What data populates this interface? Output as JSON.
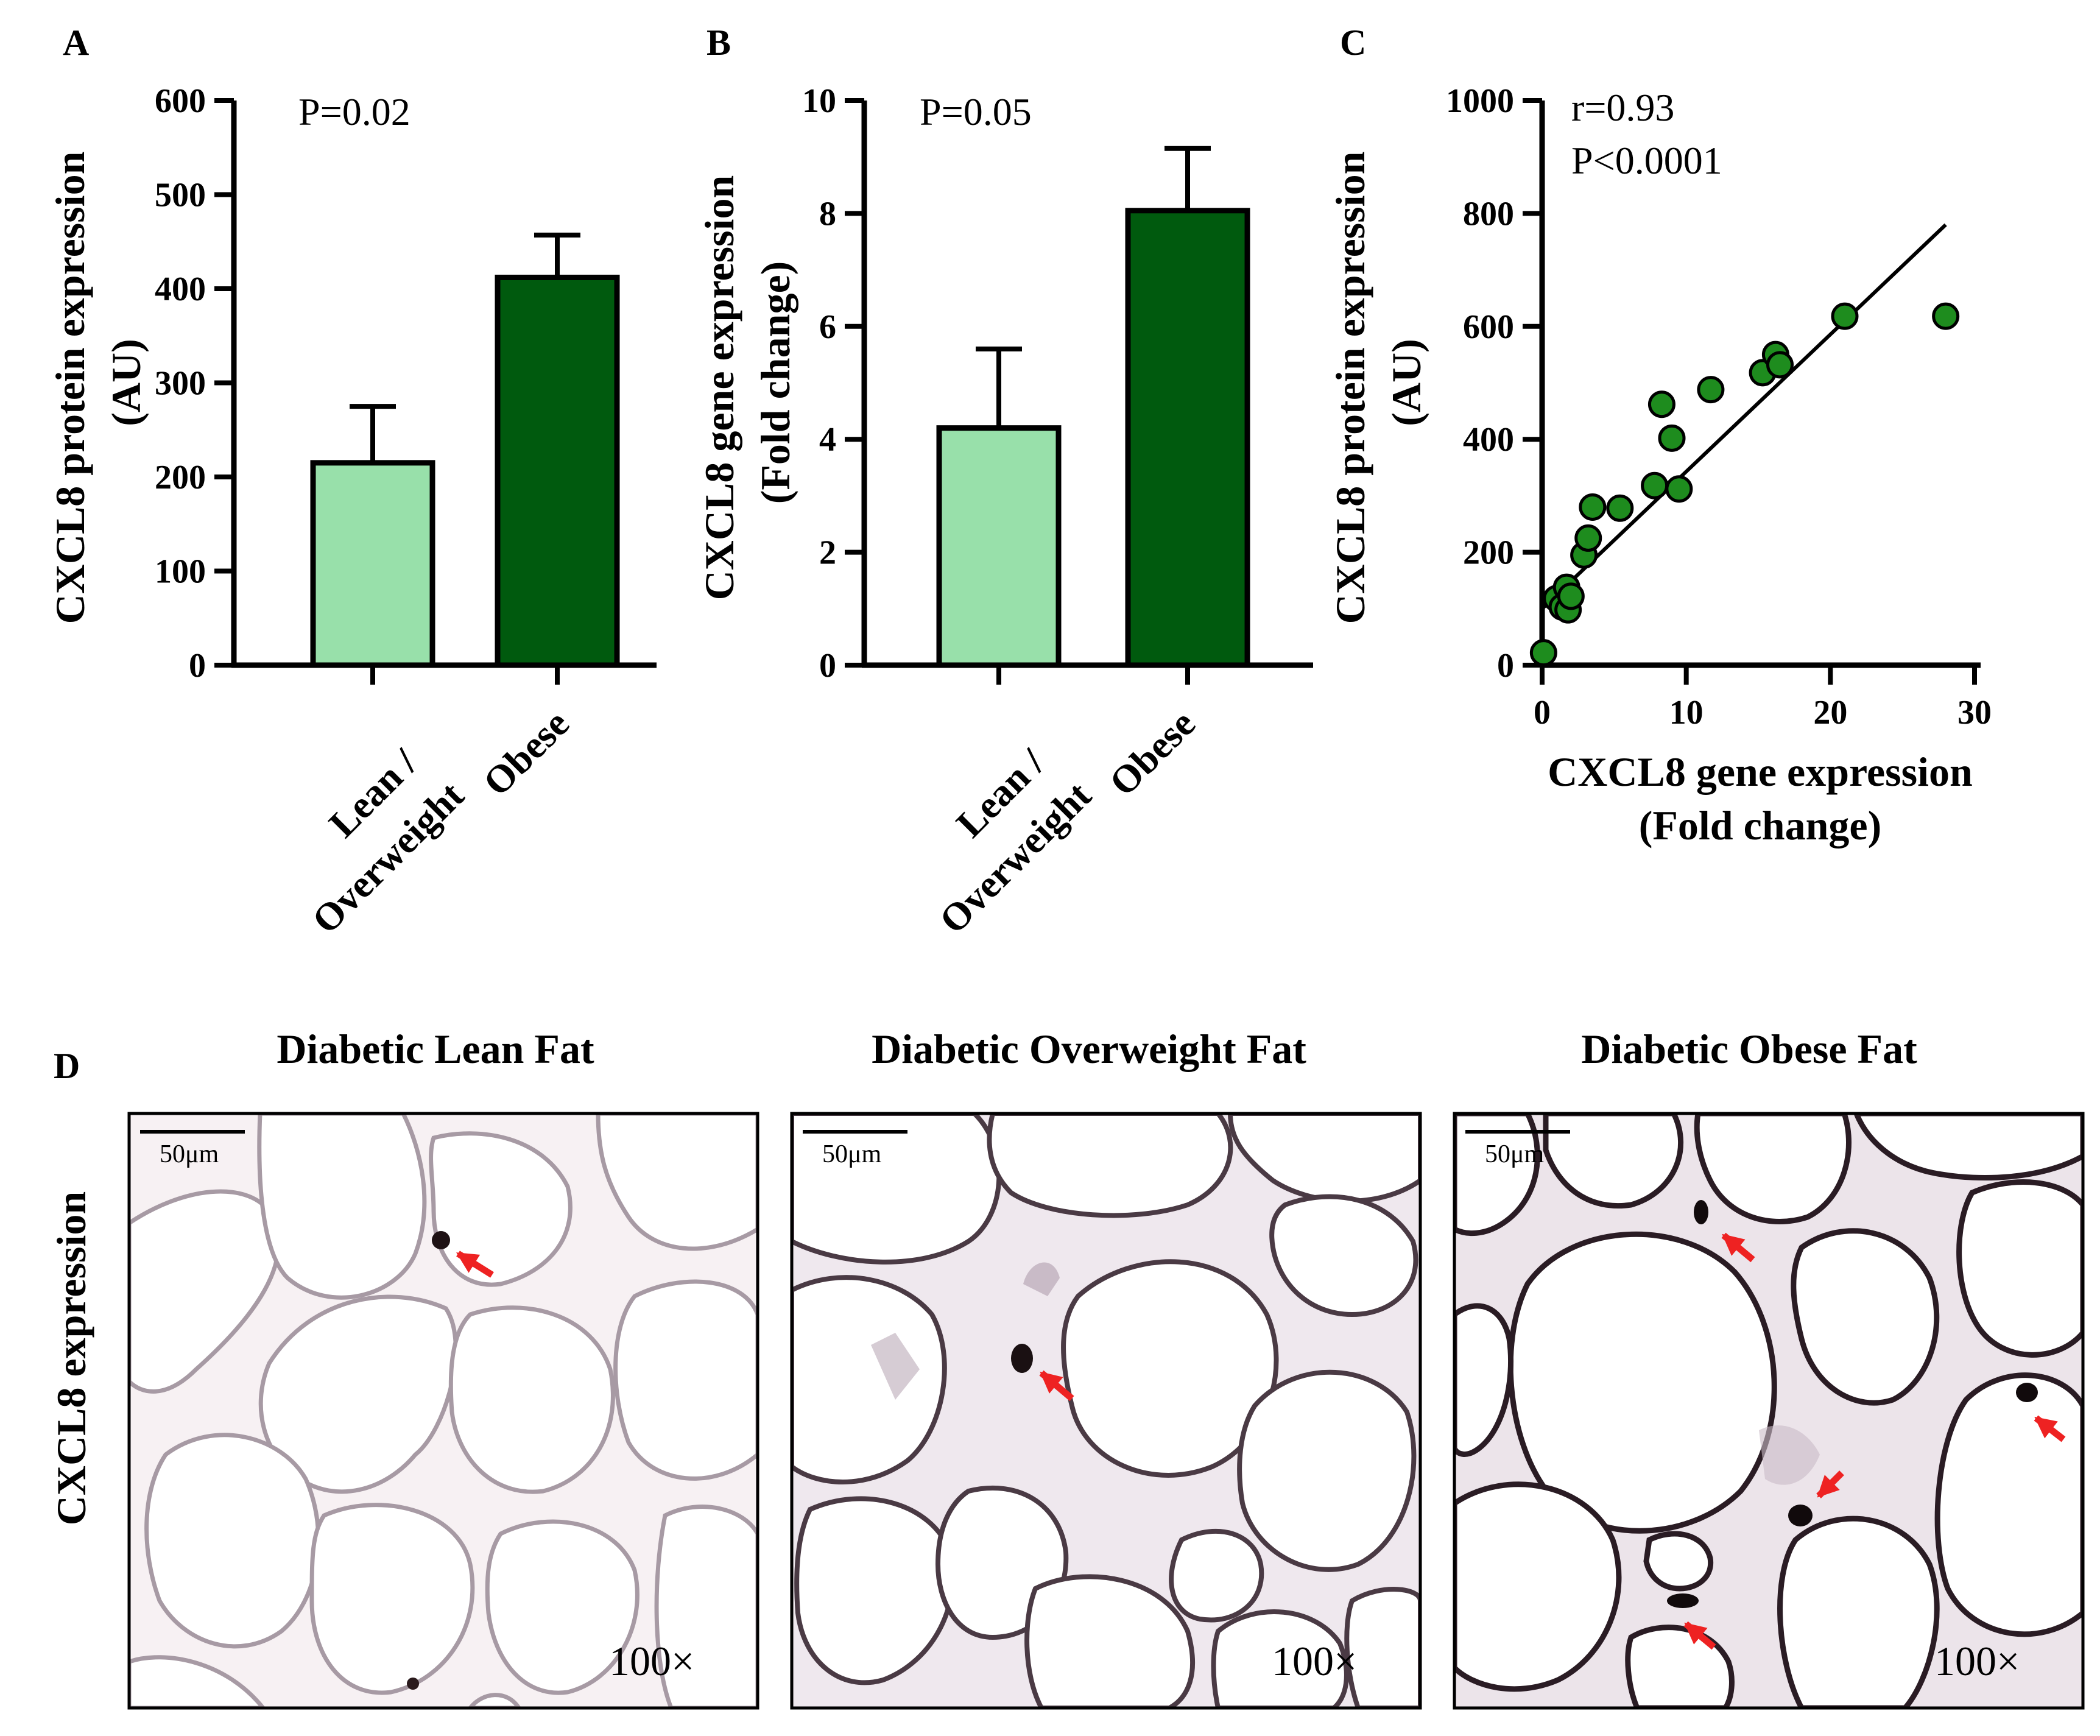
{
  "panel_labels": [
    "A",
    "B",
    "C",
    "D"
  ],
  "colors": {
    "lean_bar": "#98e0aa",
    "obese_bar": "#005a0e",
    "scatter_point": "#1e8c1e",
    "arrow": "#ee2222",
    "tissue_bg": "#f7f1f3",
    "membrane": "#a79aa4"
  },
  "chart_data": [
    {
      "type": "bar",
      "panel": "A",
      "categories": [
        "Lean /",
        "Obese"
      ],
      "category_lines": [
        [
          "Lean /",
          "Overweight"
        ],
        [
          "Obese"
        ]
      ],
      "values": [
        215,
        412
      ],
      "errors": [
        60,
        45
      ],
      "ylabel_lines": [
        "CXCL8 protein expression",
        "(AU)"
      ],
      "ylim": [
        0,
        600
      ],
      "yticks": [
        0,
        100,
        200,
        300,
        400,
        500,
        600
      ],
      "annotation": "P=0.02"
    },
    {
      "type": "bar",
      "panel": "B",
      "categories": [
        "Lean /",
        "Obese"
      ],
      "category_lines": [
        [
          "Lean /",
          "Overweight"
        ],
        [
          "Obese"
        ]
      ],
      "values": [
        4.2,
        8.05
      ],
      "errors": [
        1.4,
        1.1
      ],
      "ylabel_lines": [
        "CXCL8 gene expression",
        "(Fold change)"
      ],
      "ylim": [
        0,
        10
      ],
      "yticks": [
        0,
        2,
        4,
        6,
        8,
        10
      ],
      "annotation": "P=0.05"
    },
    {
      "type": "scatter",
      "panel": "C",
      "x": [
        0.1,
        1.0,
        1.4,
        1.7,
        1.8,
        2.0,
        2.9,
        3.2,
        3.5,
        5.4,
        7.8,
        8.3,
        9.0,
        9.5,
        11.7,
        15.3,
        16.2,
        16.5,
        21.0,
        28.0
      ],
      "y": [
        22,
        118,
        103,
        138,
        98,
        122,
        195,
        225,
        280,
        278,
        318,
        462,
        402,
        312,
        488,
        518,
        550,
        532,
        618,
        618
      ],
      "fit_line": {
        "x": [
          0,
          28
        ],
        "y": [
          100,
          780
        ]
      },
      "xlim": [
        0,
        30
      ],
      "ylim": [
        0,
        1000
      ],
      "xticks": [
        0,
        10,
        20,
        30
      ],
      "yticks": [
        0,
        200,
        400,
        600,
        800,
        1000
      ],
      "xlabel_lines": [
        "CXCL8 gene expression",
        "(Fold change)"
      ],
      "ylabel_lines": [
        "CXCL8 protein expression",
        "(AU)"
      ],
      "annotations": [
        "r=0.93",
        "P<0.0001"
      ]
    }
  ],
  "panel_d": {
    "row_label": "CXCL8 expression",
    "images": [
      {
        "title": "Diabetic Lean Fat",
        "scale_bar": "50μm",
        "magnification": "100×"
      },
      {
        "title": "Diabetic Overweight Fat",
        "scale_bar": "50μm",
        "magnification": "100×"
      },
      {
        "title": "Diabetic Obese Fat",
        "scale_bar": "50μm",
        "magnification": "100×"
      }
    ]
  }
}
